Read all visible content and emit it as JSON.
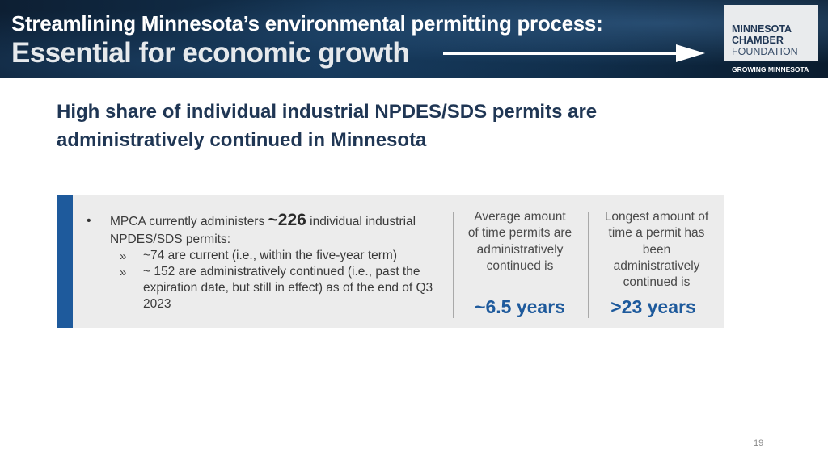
{
  "banner": {
    "line1": "Streamlining Minnesota’s environmental permitting process:",
    "line2": "Essential for economic growth",
    "colors": {
      "background": "#12314f",
      "text": "#ffffff"
    }
  },
  "logo": {
    "line1": "MINNESOTA",
    "line2": "CHAMBER",
    "line3": "FOUNDATION",
    "tagline": "GROWING MINNESOTA"
  },
  "slide": {
    "title": "High share of individual industrial NPDES/SDS permits are administratively continued in Minnesota",
    "page_number": "19"
  },
  "panel": {
    "accent_color": "#1e5a9c",
    "bullet_marker": "•",
    "bullet_text_before": "MPCA currently administers ",
    "bullet_highlight": "~226",
    "bullet_text_after": " individual industrial NPDES/SDS permits:",
    "sub_marker": "»",
    "sub_items": [
      "~74 are current (i.e., within the five-year term)",
      "~ 152 are administratively continued (i.e., past the expiration date, but still in effect) as of the end of Q3 2023"
    ],
    "stats": [
      {
        "label": "Average amount of time permits are administratively continued is",
        "value": "~6.5 years"
      },
      {
        "label": "Longest amount of time a permit has been administratively continued is",
        "value": ">23 years"
      }
    ]
  }
}
